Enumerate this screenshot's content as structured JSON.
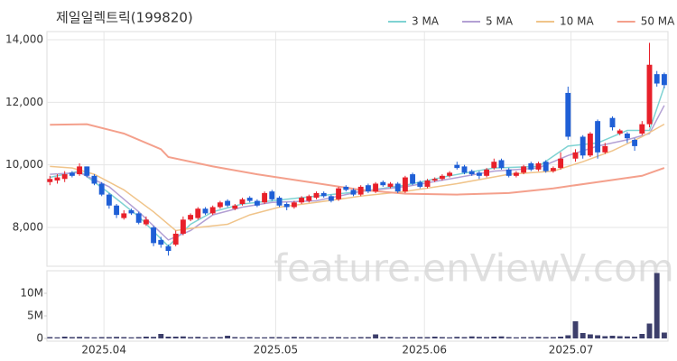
{
  "chart_data": {
    "type": "candlestick",
    "title": "제일일렉트릭(199820)",
    "watermark": "feature.enViewV.com",
    "up_color": "#e8202a",
    "down_color": "#1f5fd6",
    "volume_color": "#3d3f6b",
    "xlim": [
      -0.4,
      83.5
    ],
    "xticks": [
      {
        "value": 7.3,
        "label": "2025.04"
      },
      {
        "value": 30.5,
        "label": "2025.05"
      },
      {
        "value": 50.6,
        "label": "2025.06"
      },
      {
        "value": 70.4,
        "label": "2025.07"
      }
    ],
    "ylim": [
      6760,
      14260
    ],
    "yticks": [
      {
        "value": 8000,
        "label": "8,000"
      },
      {
        "value": 10000,
        "label": "10,000"
      },
      {
        "value": 12000,
        "label": "12,000"
      },
      {
        "value": 14000,
        "label": "14,000"
      }
    ],
    "volume_ylim": [
      0,
      15000000
    ],
    "volume_yticks": [
      {
        "value": 0,
        "label": "0"
      },
      {
        "value": 5000000,
        "label": "5M"
      },
      {
        "value": 10000000,
        "label": "10M"
      }
    ],
    "open": [
      9450,
      9500,
      9550,
      9750,
      9700,
      9950,
      9650,
      9400,
      9050,
      8700,
      8300,
      8550,
      8450,
      8100,
      8000,
      7600,
      7400,
      7450,
      7800,
      8250,
      8300,
      8600,
      8450,
      8650,
      8850,
      8600,
      8750,
      8950,
      8850,
      8800,
      9150,
      8950,
      8750,
      8650,
      8800,
      8850,
      8950,
      9100,
      9000,
      8900,
      9300,
      9200,
      9050,
      9350,
      9150,
      9450,
      9300,
      9400,
      9150,
      9700,
      9450,
      9300,
      9500,
      9550,
      9650,
      10000,
      9950,
      9800,
      9750,
      9650,
      9900,
      10150,
      9850,
      9650,
      9750,
      10050,
      9850,
      10100,
      9800,
      9900,
      12300,
      10200,
      10900,
      10300,
      11400,
      10400,
      11500,
      11000,
      11000,
      10800,
      11000,
      11300,
      12900,
      12900
    ],
    "high": [
      9650,
      9700,
      9800,
      9800,
      10050,
      9950,
      9700,
      9450,
      9100,
      8750,
      8550,
      8600,
      8500,
      8350,
      8050,
      7700,
      7450,
      7900,
      8350,
      8450,
      8650,
      8650,
      8700,
      8850,
      8900,
      8750,
      8950,
      9000,
      8900,
      9150,
      9200,
      9000,
      8800,
      8850,
      9000,
      9050,
      9150,
      9150,
      9050,
      9300,
      9350,
      9250,
      9350,
      9400,
      9450,
      9500,
      9450,
      9450,
      9650,
      9750,
      9500,
      9550,
      9600,
      9700,
      9800,
      10100,
      10000,
      9850,
      9800,
      9900,
      10200,
      10200,
      9900,
      9800,
      10000,
      10100,
      10100,
      10150,
      9950,
      10400,
      12500,
      10500,
      10950,
      11050,
      11450,
      10700,
      11550,
      11150,
      11050,
      10850,
      11400,
      13900,
      13000,
      12950
    ],
    "low": [
      9350,
      9400,
      9450,
      9600,
      9650,
      9600,
      9350,
      9000,
      8600,
      8300,
      8250,
      8400,
      8100,
      8050,
      7400,
      7350,
      7100,
      7400,
      7750,
      8200,
      8250,
      8400,
      8400,
      8600,
      8650,
      8550,
      8700,
      8800,
      8650,
      8750,
      8850,
      8650,
      8550,
      8600,
      8750,
      8800,
      8900,
      8950,
      8800,
      8850,
      9150,
      9000,
      9000,
      9100,
      9100,
      9300,
      9250,
      9100,
      9100,
      9350,
      9250,
      9250,
      9450,
      9500,
      9600,
      9850,
      9700,
      9650,
      9550,
      9600,
      9850,
      9850,
      9600,
      9600,
      9700,
      9800,
      9800,
      9750,
      9750,
      9850,
      10800,
      10100,
      10200,
      10250,
      10200,
      10350,
      11100,
      10950,
      10700,
      10450,
      10950,
      11200,
      12500,
      12450
    ],
    "close": [
      9550,
      9600,
      9700,
      9650,
      9950,
      9650,
      9400,
      9050,
      8700,
      8400,
      8450,
      8450,
      8150,
      8250,
      7500,
      7450,
      7250,
      7800,
      8250,
      8400,
      8600,
      8450,
      8650,
      8800,
      8700,
      8700,
      8900,
      8850,
      8700,
      9100,
      8900,
      8700,
      8650,
      8800,
      8950,
      9000,
      9100,
      9000,
      8850,
      9250,
      9200,
      9050,
      9300,
      9150,
      9400,
      9350,
      9400,
      9150,
      9600,
      9400,
      9300,
      9500,
      9550,
      9650,
      9750,
      9900,
      9750,
      9700,
      9650,
      9850,
      10100,
      9900,
      9650,
      9750,
      9950,
      9850,
      10050,
      9800,
      9900,
      10200,
      10900,
      10400,
      10300,
      11000,
      10400,
      10600,
      11200,
      11100,
      10850,
      10600,
      11300,
      13200,
      12600,
      12550
    ],
    "volume": [
      300000,
      250000,
      400000,
      300000,
      350000,
      300000,
      250000,
      300000,
      300000,
      350000,
      300000,
      250000,
      300000,
      400000,
      350000,
      1000000,
      400000,
      400000,
      450000,
      300000,
      350000,
      250000,
      300000,
      300000,
      600000,
      300000,
      250000,
      300000,
      250000,
      250000,
      300000,
      300000,
      250000,
      350000,
      300000,
      300000,
      300000,
      250000,
      300000,
      300000,
      250000,
      250000,
      300000,
      300000,
      900000,
      300000,
      350000,
      250000,
      300000,
      300000,
      300000,
      300000,
      400000,
      300000,
      250000,
      350000,
      300000,
      450000,
      350000,
      300000,
      400000,
      450000,
      300000,
      250000,
      300000,
      300000,
      350000,
      300000,
      300000,
      400000,
      700000,
      3800000,
      1200000,
      900000,
      700000,
      500000,
      600000,
      500000,
      450000,
      400000,
      1000000,
      3300000,
      14500000,
      1300000
    ],
    "series": [
      {
        "name": "3 MA",
        "color": "#7fd3d3",
        "x": [
          0,
          4,
          8,
          12,
          16,
          19,
          22,
          26,
          30,
          36,
          42,
          48,
          54,
          60,
          66,
          70,
          74,
          78,
          81,
          83
        ],
        "values": [
          9600,
          9800,
          9100,
          8350,
          7400,
          8100,
          8500,
          8750,
          8850,
          9000,
          9150,
          9350,
          9650,
          9900,
          9950,
          10600,
          10700,
          11100,
          11100,
          12500
        ]
      },
      {
        "name": "5 MA",
        "color": "#b3a0d4",
        "x": [
          0,
          4,
          8,
          12,
          16,
          19,
          22,
          26,
          30,
          36,
          42,
          48,
          54,
          60,
          66,
          70,
          74,
          78,
          81,
          83
        ],
        "values": [
          9700,
          9750,
          9300,
          8500,
          7600,
          7900,
          8400,
          8650,
          8800,
          8850,
          9150,
          9300,
          9550,
          9800,
          9900,
          10300,
          10600,
          10800,
          11000,
          11900
        ]
      },
      {
        "name": "10 MA",
        "color": "#f0c48a",
        "x": [
          0,
          3,
          6,
          10,
          14,
          17,
          20,
          24,
          27,
          31,
          36,
          42,
          48,
          55,
          62,
          68,
          72,
          76,
          80,
          83
        ],
        "values": [
          9950,
          9900,
          9700,
          9200,
          8500,
          7900,
          8000,
          8100,
          8400,
          8650,
          8800,
          9000,
          9150,
          9400,
          9700,
          9800,
          10100,
          10450,
          10900,
          11300
        ]
      },
      {
        "name": "50 MA",
        "color": "#f4a08c",
        "x": [
          0,
          5,
          10,
          15,
          16,
          22,
          28,
          35,
          42,
          48,
          55,
          62,
          68,
          74,
          80,
          83
        ],
        "values": [
          11280,
          11300,
          11000,
          10500,
          10250,
          9950,
          9700,
          9450,
          9200,
          9080,
          9050,
          9100,
          9250,
          9450,
          9650,
          9900
        ]
      }
    ]
  }
}
